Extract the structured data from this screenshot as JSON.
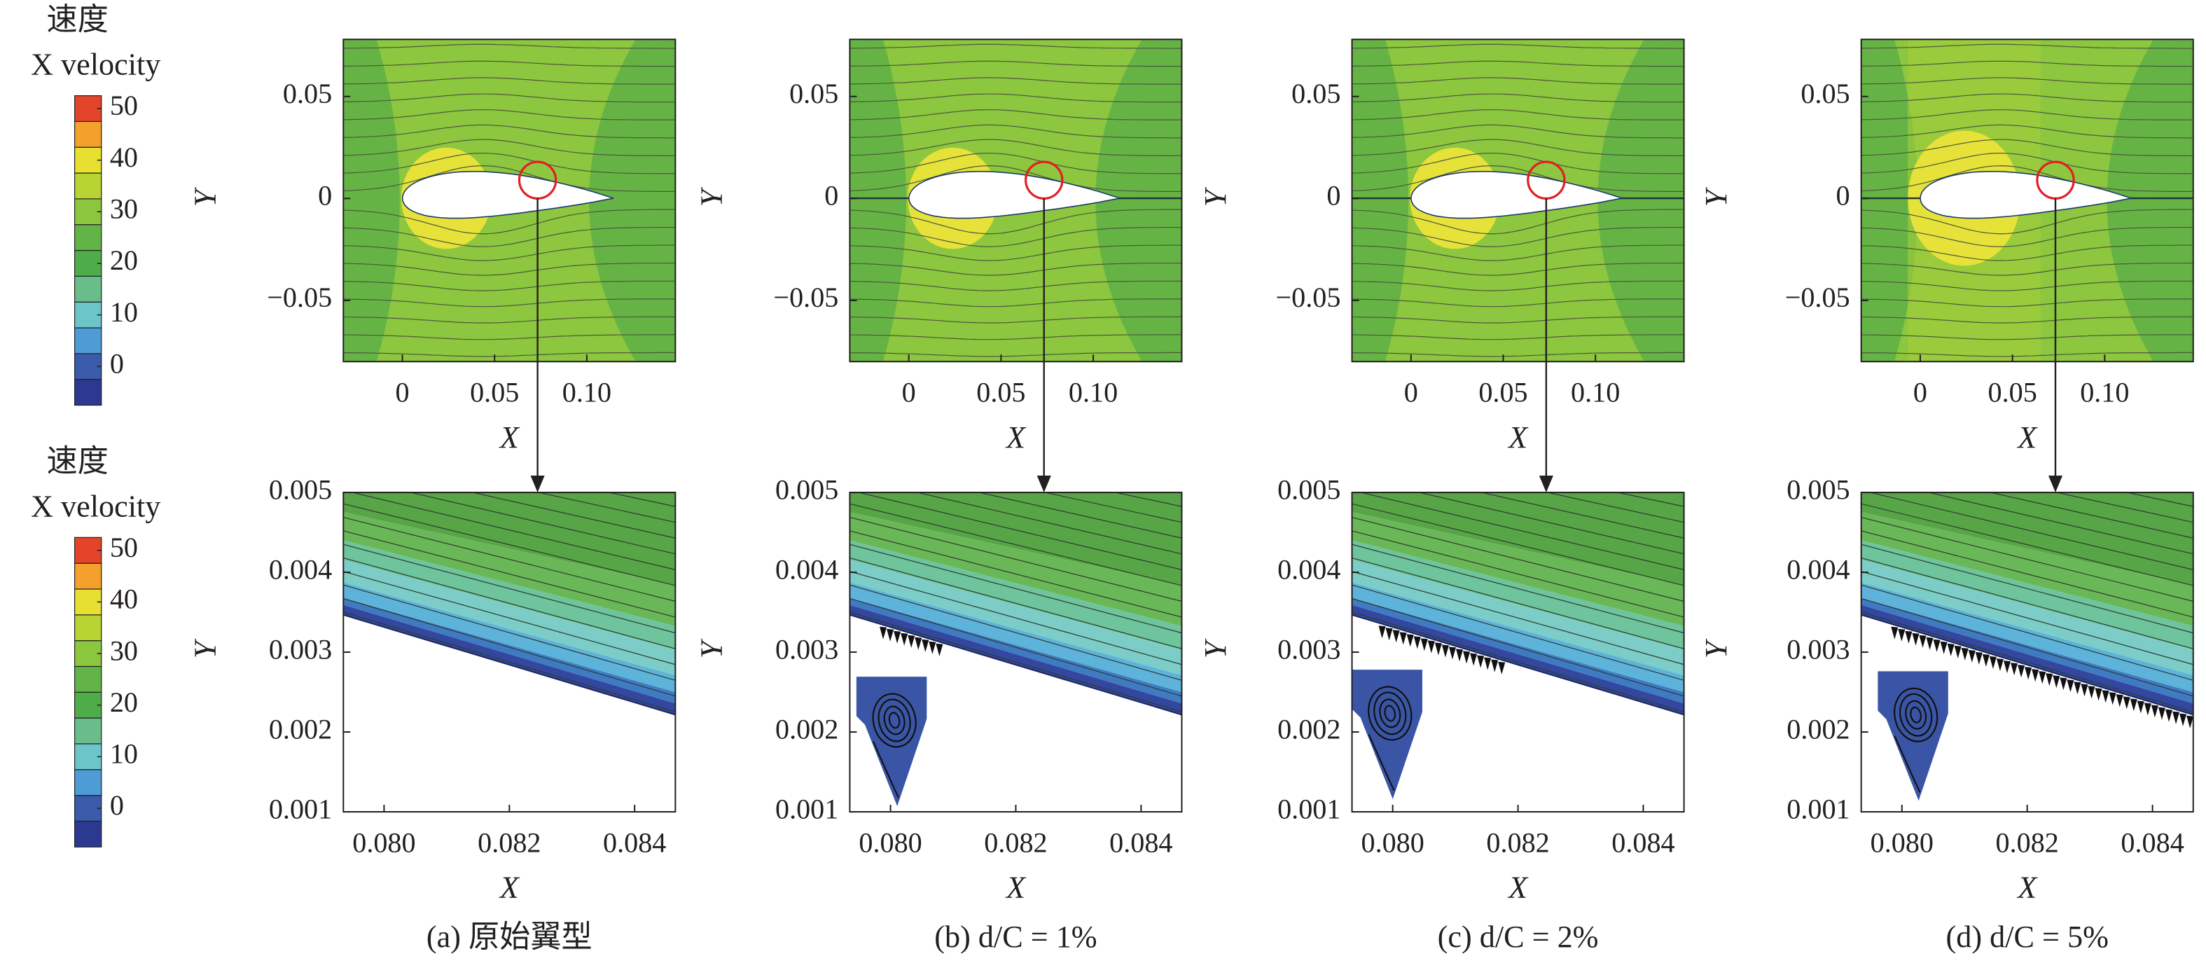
{
  "colorbars": [
    {
      "title": [
        "速度",
        "X velocity"
      ],
      "levels": [
        -7.5,
        -2.5,
        2.5,
        7.5,
        12.5,
        17.5,
        22.5,
        27.5,
        32.5,
        37.5,
        42.5,
        47.5,
        52.5
      ],
      "colors": [
        "#2b3990",
        "#3a5ba9",
        "#4f9bd6",
        "#6cc5c9",
        "#68bd8a",
        "#4fac4a",
        "#63b446",
        "#8cc63f",
        "#b8d433",
        "#e8e030",
        "#f4a02c",
        "#e4452a"
      ],
      "ticks": [
        0,
        10,
        20,
        30,
        40,
        50
      ]
    },
    {
      "title": [
        "速度",
        "X velocity"
      ],
      "levels": [
        -7.5,
        -2.5,
        2.5,
        7.5,
        12.5,
        17.5,
        22.5,
        27.5,
        32.5,
        37.5,
        42.5,
        47.5,
        52.5
      ],
      "colors": [
        "#2b3990",
        "#3a5ba9",
        "#4f9bd6",
        "#6cc5c9",
        "#68bd8a",
        "#4fac4a",
        "#63b446",
        "#8cc63f",
        "#b8d433",
        "#e8e030",
        "#f4a02c",
        "#e4452a"
      ],
      "ticks": [
        0,
        10,
        20,
        30,
        40,
        50
      ]
    }
  ],
  "chart_data": [
    {
      "type": "contour",
      "xlabel": "X",
      "ylabel": "Y",
      "xlim": [
        -0.032,
        0.148
      ],
      "ylim": [
        -0.08,
        0.078
      ],
      "xticks": [
        0,
        0.05,
        {
          "value": 0.1,
          "label": "0.10"
        }
      ],
      "yticks": [
        {
          "value": -0.05,
          "label": "−0.05"
        },
        0,
        0.05
      ]
    },
    {
      "type": "contour",
      "xlabel": "X",
      "ylabel": "Y",
      "xlim": [
        -0.032,
        0.148
      ],
      "ylim": [
        -0.08,
        0.078
      ],
      "xticks": [
        0,
        0.05,
        {
          "value": 0.1,
          "label": "0.10"
        }
      ],
      "yticks": [
        {
          "value": -0.05,
          "label": "−0.05"
        },
        0,
        0.05
      ]
    },
    {
      "type": "contour",
      "xlabel": "X",
      "ylabel": "Y",
      "xlim": [
        -0.032,
        0.148
      ],
      "ylim": [
        -0.08,
        0.078
      ],
      "xticks": [
        0,
        0.05,
        {
          "value": 0.1,
          "label": "0.10"
        }
      ],
      "yticks": [
        {
          "value": -0.05,
          "label": "−0.05"
        },
        0,
        0.05
      ]
    },
    {
      "type": "contour",
      "xlabel": "X",
      "ylabel": "Y",
      "xlim": [
        -0.032,
        0.148
      ],
      "ylim": [
        -0.08,
        0.078
      ],
      "xticks": [
        0,
        0.05,
        {
          "value": 0.1,
          "label": "0.10"
        }
      ],
      "yticks": [
        {
          "value": -0.05,
          "label": "−0.05"
        },
        0,
        0.05
      ]
    },
    {
      "type": "contour",
      "xlabel": "X",
      "ylabel": "Y",
      "xlim": [
        0.07935,
        0.08465
      ],
      "ylim": [
        0.001,
        0.005
      ],
      "xticks": [
        {
          "value": 0.08,
          "label": "0.080"
        },
        0.082,
        0.084
      ],
      "yticks": [
        0.001,
        0.002,
        0.003,
        0.004,
        0.005
      ],
      "caption": "(a) 原始翼型"
    },
    {
      "type": "contour",
      "xlabel": "X",
      "ylabel": "Y",
      "xlim": [
        0.07935,
        0.08465
      ],
      "ylim": [
        0.001,
        0.005
      ],
      "xticks": [
        {
          "value": 0.08,
          "label": "0.080"
        },
        0.082,
        0.084
      ],
      "yticks": [
        0.001,
        0.002,
        0.003,
        0.004,
        0.005
      ],
      "caption": "(b) d/C = 1%"
    },
    {
      "type": "contour",
      "xlabel": "X",
      "ylabel": "Y",
      "xlim": [
        0.07935,
        0.08465
      ],
      "ylim": [
        0.001,
        0.005
      ],
      "xticks": [
        {
          "value": 0.08,
          "label": "0.080"
        },
        0.082,
        0.084
      ],
      "yticks": [
        0.001,
        0.002,
        0.003,
        0.004,
        0.005
      ],
      "caption": "(c) d/C = 2%"
    },
    {
      "type": "contour",
      "xlabel": "X",
      "ylabel": "Y",
      "xlim": [
        0.07935,
        0.08465
      ],
      "ylim": [
        0.001,
        0.005
      ],
      "xticks": [
        {
          "value": 0.08,
          "label": "0.080"
        },
        0.082,
        0.084
      ],
      "yticks": [
        0.001,
        0.002,
        0.003,
        0.004,
        0.005
      ],
      "caption": "(d) d/C = 5%"
    }
  ]
}
